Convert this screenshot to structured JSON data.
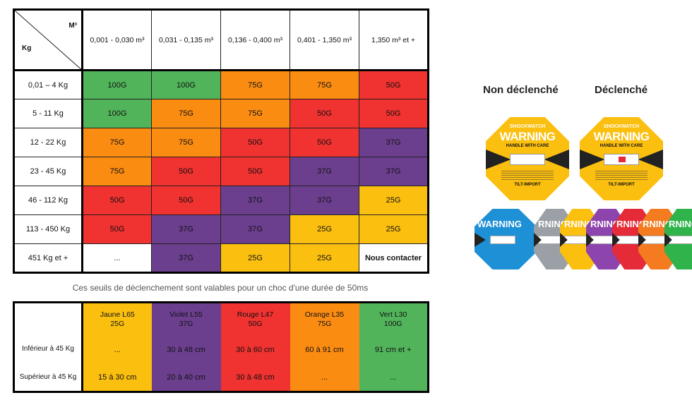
{
  "matrix": {
    "corner_top": "M³",
    "corner_left": "Kg",
    "columns": [
      "0,001 - 0,030 m³",
      "0,031 - 0,135 m³",
      "0,136 - 0,400 m³",
      "0,401 - 1,350 m³",
      "1,350 m³ et +"
    ],
    "rows": [
      {
        "label": "0,01 – 4 Kg",
        "cells": [
          "100G",
          "100G",
          "75G",
          "75G",
          "50G"
        ],
        "colors": [
          "#52b45a",
          "#52b45a",
          "#fb8c12",
          "#fb8c12",
          "#f03230"
        ]
      },
      {
        "label": "5 - 11 Kg",
        "cells": [
          "100G",
          "75G",
          "75G",
          "50G",
          "50G"
        ],
        "colors": [
          "#52b45a",
          "#fb8c12",
          "#fb8c12",
          "#f03230",
          "#f03230"
        ]
      },
      {
        "label": "12 - 22 Kg",
        "cells": [
          "75G",
          "75G",
          "50G",
          "50G",
          "37G"
        ],
        "colors": [
          "#fb8c12",
          "#fb8c12",
          "#f03230",
          "#f03230",
          "#6b3f8e"
        ]
      },
      {
        "label": "23 - 45 Kg",
        "cells": [
          "75G",
          "50G",
          "50G",
          "37G",
          "37G"
        ],
        "colors": [
          "#fb8c12",
          "#f03230",
          "#f03230",
          "#6b3f8e",
          "#6b3f8e"
        ]
      },
      {
        "label": "46 - 112 Kg",
        "cells": [
          "50G",
          "50G",
          "37G",
          "37G",
          "25G"
        ],
        "colors": [
          "#f03230",
          "#f03230",
          "#6b3f8e",
          "#6b3f8e",
          "#fbbf10"
        ]
      },
      {
        "label": "113 - 450 Kg",
        "cells": [
          "50G",
          "37G",
          "37G",
          "25G",
          "25G"
        ],
        "colors": [
          "#f03230",
          "#6b3f8e",
          "#6b3f8e",
          "#fbbf10",
          "#fbbf10"
        ]
      },
      {
        "label": "451 Kg et +",
        "cells": [
          "...",
          "37G",
          "25G",
          "25G",
          "Nous contacter"
        ],
        "colors": [
          "#ffffff",
          "#6b3f8e",
          "#fbbf10",
          "#fbbf10",
          "#ffffff"
        ]
      }
    ]
  },
  "caption": "Ces seuils de déclenchement sont valables pour un choc d'une durée de 50ms",
  "thresholds": {
    "headers": [
      {
        "name": "Jaune L65",
        "g": "25G",
        "color": "#fbbf10"
      },
      {
        "name": "Violet L55",
        "g": "37G",
        "color": "#6b3f8e"
      },
      {
        "name": "Rouge L47",
        "g": "50G",
        "color": "#f03230"
      },
      {
        "name": "Orange L35",
        "g": "75G",
        "color": "#fb8c12"
      },
      {
        "name": "Vert L30",
        "g": "100G",
        "color": "#52b45a"
      }
    ],
    "rows": [
      {
        "label": "Inférieur à 45 Kg",
        "values": [
          "...",
          "30 à 48 cm",
          "30 à 60 cm",
          "60 à 91 cm",
          "91 cm et +"
        ]
      },
      {
        "label": "Supérieur à 45 Kg",
        "values": [
          "15 à 30 cm",
          "20 à 40 cm",
          "30 à 48 cm",
          "...",
          "..."
        ]
      }
    ]
  },
  "indicators": {
    "not_triggered_label": "Non déclenché",
    "triggered_label": "Déclenché",
    "brand": "SHOCKWATCH",
    "warning": "WARNING",
    "handle": "HANDLE WITH CARE",
    "tilt": "TILT-IMPORT",
    "partial_warning": "RNING",
    "stack_colors": [
      "#1e90d6",
      "#9aa0a6",
      "#fbbf10",
      "#8e44ad",
      "#e52a38",
      "#f47b20",
      "#2fb34a"
    ]
  }
}
